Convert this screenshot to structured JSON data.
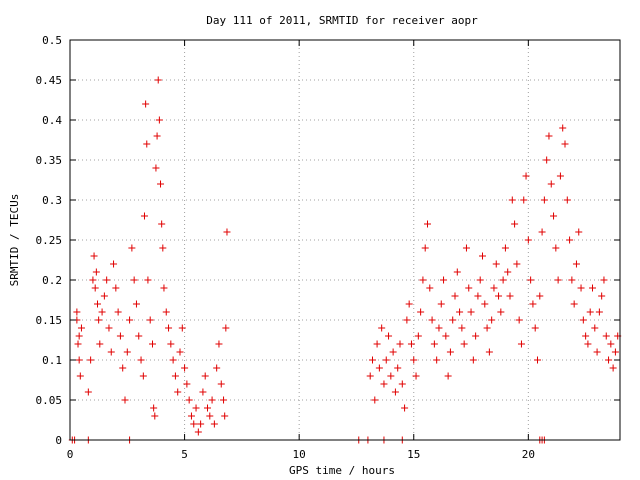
{
  "chart_data": {
    "type": "scatter",
    "title": "Day 111 of 2011, SRMTID for receiver aopr",
    "xlabel": "GPS time / hours",
    "ylabel": "SRMTID / TECUs",
    "xlim": [
      0,
      24
    ],
    "ylim": [
      0,
      0.5
    ],
    "x_ticks": [
      0,
      5,
      10,
      15,
      20
    ],
    "x_tick_labels": [
      "0",
      "5",
      "10",
      "15",
      "20"
    ],
    "y_ticks": [
      0,
      0.05,
      0.1,
      0.15,
      0.2,
      0.25,
      0.3,
      0.35,
      0.4,
      0.45,
      0.5
    ],
    "y_tick_labels": [
      "0",
      "0.05",
      "0.1",
      "0.15",
      "0.2",
      "0.25",
      "0.3",
      "0.35",
      "0.4",
      "0.45",
      "0.5"
    ],
    "grid": true,
    "marker": "+",
    "marker_color": "#e00000",
    "series": [
      {
        "name": "SRMTID",
        "points": [
          [
            0.1,
            0.0
          ],
          [
            0.2,
            0.0
          ],
          [
            0.8,
            0.0
          ],
          [
            2.6,
            0.0
          ],
          [
            12.6,
            0.0
          ],
          [
            13.0,
            0.0
          ],
          [
            13.7,
            0.0
          ],
          [
            14.5,
            0.0
          ],
          [
            20.5,
            0.0
          ],
          [
            20.6,
            0.0
          ],
          [
            20.7,
            0.0
          ],
          [
            0.3,
            0.15
          ],
          [
            0.35,
            0.12
          ],
          [
            0.4,
            0.1
          ],
          [
            0.45,
            0.08
          ],
          [
            0.5,
            0.14
          ],
          [
            0.3,
            0.16
          ],
          [
            0.4,
            0.13
          ],
          [
            0.8,
            0.06
          ],
          [
            0.9,
            0.1
          ],
          [
            1.0,
            0.2
          ],
          [
            1.05,
            0.23
          ],
          [
            1.1,
            0.19
          ],
          [
            1.15,
            0.21
          ],
          [
            1.2,
            0.17
          ],
          [
            1.25,
            0.15
          ],
          [
            1.3,
            0.12
          ],
          [
            1.4,
            0.16
          ],
          [
            1.5,
            0.18
          ],
          [
            1.6,
            0.2
          ],
          [
            1.7,
            0.14
          ],
          [
            1.8,
            0.11
          ],
          [
            1.9,
            0.22
          ],
          [
            2.0,
            0.19
          ],
          [
            2.1,
            0.16
          ],
          [
            2.2,
            0.13
          ],
          [
            2.3,
            0.09
          ],
          [
            2.4,
            0.05
          ],
          [
            2.5,
            0.11
          ],
          [
            2.6,
            0.15
          ],
          [
            2.7,
            0.24
          ],
          [
            2.8,
            0.2
          ],
          [
            2.9,
            0.17
          ],
          [
            3.0,
            0.13
          ],
          [
            3.1,
            0.1
          ],
          [
            3.2,
            0.08
          ],
          [
            3.25,
            0.28
          ],
          [
            3.3,
            0.42
          ],
          [
            3.35,
            0.37
          ],
          [
            3.4,
            0.2
          ],
          [
            3.5,
            0.15
          ],
          [
            3.6,
            0.12
          ],
          [
            3.65,
            0.04
          ],
          [
            3.7,
            0.03
          ],
          [
            3.75,
            0.34
          ],
          [
            3.8,
            0.38
          ],
          [
            3.85,
            0.45
          ],
          [
            3.9,
            0.4
          ],
          [
            3.95,
            0.32
          ],
          [
            4.0,
            0.27
          ],
          [
            4.05,
            0.24
          ],
          [
            4.1,
            0.19
          ],
          [
            4.2,
            0.16
          ],
          [
            4.3,
            0.14
          ],
          [
            4.4,
            0.12
          ],
          [
            4.5,
            0.1
          ],
          [
            4.6,
            0.08
          ],
          [
            4.7,
            0.06
          ],
          [
            4.8,
            0.11
          ],
          [
            4.9,
            0.14
          ],
          [
            5.0,
            0.09
          ],
          [
            5.1,
            0.07
          ],
          [
            5.2,
            0.05
          ],
          [
            5.3,
            0.03
          ],
          [
            5.4,
            0.02
          ],
          [
            5.5,
            0.04
          ],
          [
            5.6,
            0.01
          ],
          [
            5.7,
            0.02
          ],
          [
            5.8,
            0.06
          ],
          [
            5.9,
            0.08
          ],
          [
            6.0,
            0.04
          ],
          [
            6.1,
            0.03
          ],
          [
            6.2,
            0.05
          ],
          [
            6.3,
            0.02
          ],
          [
            6.4,
            0.09
          ],
          [
            6.5,
            0.12
          ],
          [
            6.6,
            0.07
          ],
          [
            6.7,
            0.05
          ],
          [
            6.75,
            0.03
          ],
          [
            6.8,
            0.14
          ],
          [
            6.85,
            0.26
          ],
          [
            13.1,
            0.08
          ],
          [
            13.2,
            0.1
          ],
          [
            13.3,
            0.05
          ],
          [
            13.4,
            0.12
          ],
          [
            13.5,
            0.09
          ],
          [
            13.6,
            0.14
          ],
          [
            13.7,
            0.07
          ],
          [
            13.8,
            0.1
          ],
          [
            13.9,
            0.13
          ],
          [
            14.0,
            0.08
          ],
          [
            14.1,
            0.11
          ],
          [
            14.2,
            0.06
          ],
          [
            14.3,
            0.09
          ],
          [
            14.4,
            0.12
          ],
          [
            14.5,
            0.07
          ],
          [
            14.6,
            0.04
          ],
          [
            14.7,
            0.15
          ],
          [
            14.8,
            0.17
          ],
          [
            14.9,
            0.12
          ],
          [
            15.0,
            0.1
          ],
          [
            15.1,
            0.08
          ],
          [
            15.2,
            0.13
          ],
          [
            15.3,
            0.16
          ],
          [
            15.4,
            0.2
          ],
          [
            15.5,
            0.24
          ],
          [
            15.6,
            0.27
          ],
          [
            15.7,
            0.19
          ],
          [
            15.8,
            0.15
          ],
          [
            15.9,
            0.12
          ],
          [
            16.0,
            0.1
          ],
          [
            16.1,
            0.14
          ],
          [
            16.2,
            0.17
          ],
          [
            16.3,
            0.2
          ],
          [
            16.4,
            0.13
          ],
          [
            16.5,
            0.08
          ],
          [
            16.6,
            0.11
          ],
          [
            16.7,
            0.15
          ],
          [
            16.8,
            0.18
          ],
          [
            16.9,
            0.21
          ],
          [
            17.0,
            0.16
          ],
          [
            17.1,
            0.14
          ],
          [
            17.2,
            0.12
          ],
          [
            17.3,
            0.24
          ],
          [
            17.4,
            0.19
          ],
          [
            17.5,
            0.16
          ],
          [
            17.6,
            0.1
          ],
          [
            17.7,
            0.13
          ],
          [
            17.8,
            0.18
          ],
          [
            17.9,
            0.2
          ],
          [
            18.0,
            0.23
          ],
          [
            18.1,
            0.17
          ],
          [
            18.2,
            0.14
          ],
          [
            18.3,
            0.11
          ],
          [
            18.4,
            0.15
          ],
          [
            18.5,
            0.19
          ],
          [
            18.6,
            0.22
          ],
          [
            18.7,
            0.18
          ],
          [
            18.8,
            0.16
          ],
          [
            18.9,
            0.2
          ],
          [
            19.0,
            0.24
          ],
          [
            19.1,
            0.21
          ],
          [
            19.2,
            0.18
          ],
          [
            19.3,
            0.3
          ],
          [
            19.4,
            0.27
          ],
          [
            19.5,
            0.22
          ],
          [
            19.6,
            0.15
          ],
          [
            19.7,
            0.12
          ],
          [
            19.8,
            0.3
          ],
          [
            19.9,
            0.33
          ],
          [
            20.0,
            0.25
          ],
          [
            20.1,
            0.2
          ],
          [
            20.2,
            0.17
          ],
          [
            20.3,
            0.14
          ],
          [
            20.4,
            0.1
          ],
          [
            20.5,
            0.18
          ],
          [
            20.6,
            0.26
          ],
          [
            20.7,
            0.3
          ],
          [
            20.8,
            0.35
          ],
          [
            20.9,
            0.38
          ],
          [
            21.0,
            0.32
          ],
          [
            21.1,
            0.28
          ],
          [
            21.2,
            0.24
          ],
          [
            21.3,
            0.2
          ],
          [
            21.4,
            0.33
          ],
          [
            21.5,
            0.39
          ],
          [
            21.6,
            0.37
          ],
          [
            21.7,
            0.3
          ],
          [
            21.8,
            0.25
          ],
          [
            21.9,
            0.2
          ],
          [
            22.0,
            0.17
          ],
          [
            22.1,
            0.22
          ],
          [
            22.2,
            0.26
          ],
          [
            22.3,
            0.19
          ],
          [
            22.4,
            0.15
          ],
          [
            22.5,
            0.13
          ],
          [
            22.6,
            0.12
          ],
          [
            22.7,
            0.16
          ],
          [
            22.8,
            0.19
          ],
          [
            22.9,
            0.14
          ],
          [
            23.0,
            0.11
          ],
          [
            23.1,
            0.16
          ],
          [
            23.2,
            0.18
          ],
          [
            23.3,
            0.2
          ],
          [
            23.4,
            0.13
          ],
          [
            23.5,
            0.1
          ],
          [
            23.6,
            0.12
          ],
          [
            23.7,
            0.09
          ],
          [
            23.8,
            0.11
          ],
          [
            23.9,
            0.13
          ]
        ]
      }
    ]
  }
}
